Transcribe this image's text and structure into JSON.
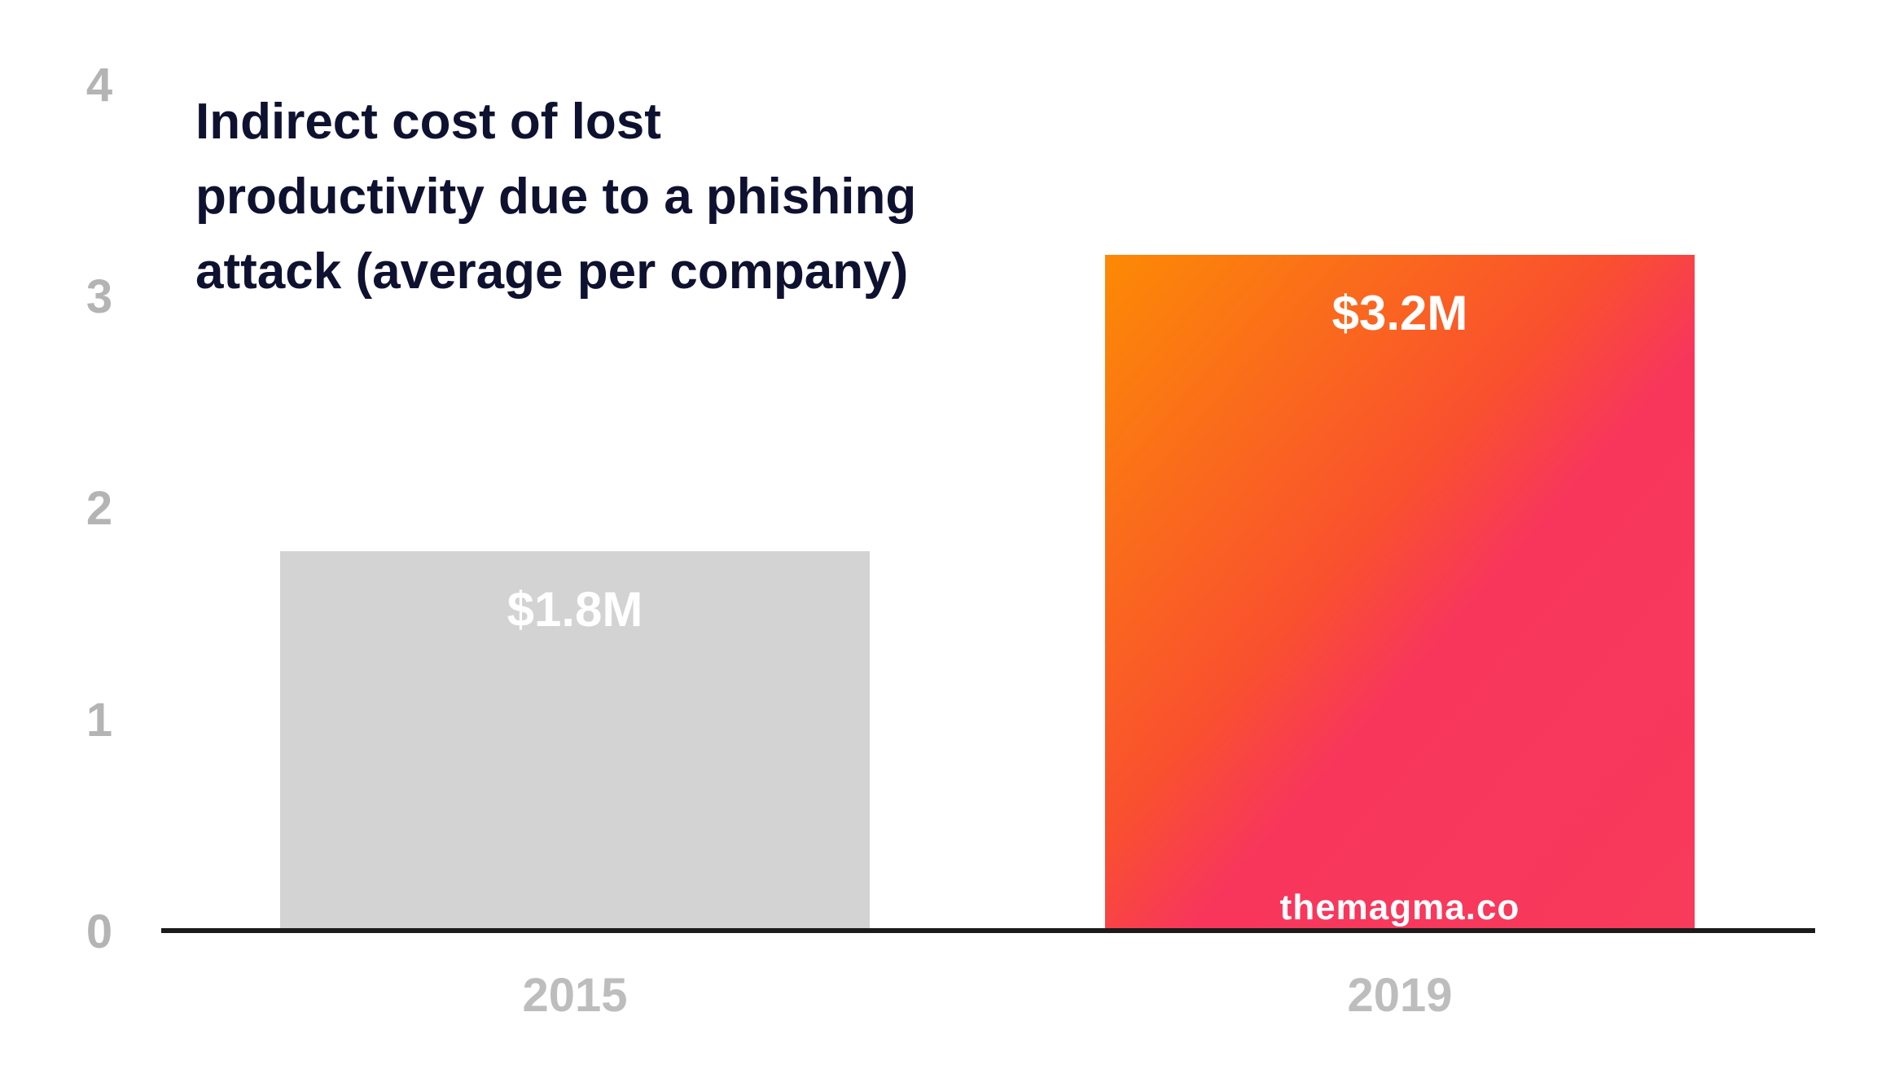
{
  "page": {
    "background": "#ffffff"
  },
  "chart_data": {
    "type": "bar",
    "title": "Indirect cost of lost productivity due to a phishing attack (average per company)",
    "title_lines": [
      "Indirect cost of lost",
      "productivity due to a phishing",
      "attack (average per company)"
    ],
    "categories": [
      "2015",
      "2019"
    ],
    "values": [
      1.8,
      3.2
    ],
    "value_labels": [
      "$1.8M",
      "$3.2M"
    ],
    "ylim": [
      0,
      4
    ],
    "yticks": [
      0,
      1,
      2,
      3,
      4
    ],
    "ytick_labels": [
      "0",
      "1",
      "2",
      "3",
      "4"
    ],
    "grid": false,
    "legend": false,
    "bar_colors": {
      "2015": "#d3d3d3",
      "2019": "linear-gradient(to bottom right, #fc8a05 0%, #f9502f 43%, #f8365c 57%, #f83a5b 100%)"
    },
    "watermark": "themagma.co"
  },
  "colors": {
    "title_text": "#0f1130",
    "tick_text": "#b4b4b4",
    "category_text": "#bdbdbd",
    "bar_value_text": "#ffffff",
    "axis_line": "#1b1b1b",
    "gray_bar": "#d3d3d3",
    "gradient_start": "#fc8a05",
    "gradient_mid": "#f9502f",
    "gradient_end": "#f8365c",
    "watermark_text": "#ffffff"
  }
}
